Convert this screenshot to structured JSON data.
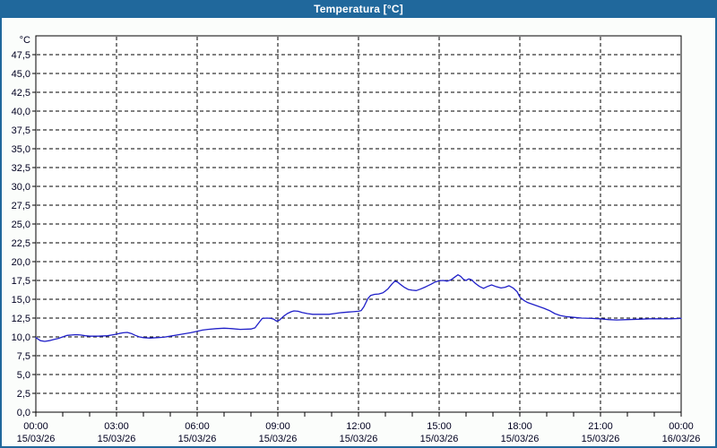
{
  "window": {
    "title": "Temperatura [°C]",
    "titlebar_color": "#20689c",
    "border_color": "#20689c",
    "background_color": "#fbfdfb"
  },
  "chart_data": {
    "type": "line",
    "title": "Temperatura [°C]",
    "ylabel": "°C",
    "ylim": [
      0,
      50
    ],
    "y_step": 2.5,
    "xlim_hours": [
      0,
      24
    ],
    "x_major_step_hours": 3,
    "x_minor_step_hours": 1,
    "grid": "dashed-black",
    "legend": "none",
    "plot_bg": "#ffffff",
    "line_color": "#2020c8",
    "axis_color": "#000000",
    "text_color": "#000020",
    "y_ticks": [
      "47,5",
      "45,0",
      "42,5",
      "40,0",
      "37,5",
      "35,0",
      "32,5",
      "30,0",
      "27,5",
      "25,0",
      "22,5",
      "20,0",
      "17,5",
      "15,0",
      "12,5",
      "10,0",
      "7,5",
      "5,0",
      "2,5",
      "0,0"
    ],
    "x_ticks": [
      {
        "hour": 0,
        "time": "00:00",
        "date": "15/03/26"
      },
      {
        "hour": 3,
        "time": "03:00",
        "date": "15/03/26"
      },
      {
        "hour": 6,
        "time": "06:00",
        "date": "15/03/26"
      },
      {
        "hour": 9,
        "time": "09:00",
        "date": "15/03/26"
      },
      {
        "hour": 12,
        "time": "12:00",
        "date": "15/03/26"
      },
      {
        "hour": 15,
        "time": "15:00",
        "date": "15/03/26"
      },
      {
        "hour": 18,
        "time": "18:00",
        "date": "15/03/26"
      },
      {
        "hour": 21,
        "time": "21:00",
        "date": "15/03/26"
      },
      {
        "hour": 24,
        "time": "00:00",
        "date": "16/03/26"
      }
    ],
    "series": [
      {
        "name": "Temperatura",
        "unit": "°C",
        "points": [
          [
            0.0,
            9.9
          ],
          [
            0.17,
            9.5
          ],
          [
            0.33,
            9.4
          ],
          [
            0.5,
            9.5
          ],
          [
            0.67,
            9.65
          ],
          [
            0.83,
            9.8
          ],
          [
            1.0,
            10.0
          ],
          [
            1.17,
            10.2
          ],
          [
            1.33,
            10.25
          ],
          [
            1.5,
            10.3
          ],
          [
            1.67,
            10.25
          ],
          [
            1.83,
            10.15
          ],
          [
            2.0,
            10.1
          ],
          [
            2.33,
            10.1
          ],
          [
            2.67,
            10.15
          ],
          [
            2.9,
            10.3
          ],
          [
            3.1,
            10.45
          ],
          [
            3.25,
            10.55
          ],
          [
            3.4,
            10.6
          ],
          [
            3.55,
            10.45
          ],
          [
            3.7,
            10.2
          ],
          [
            3.85,
            10.0
          ],
          [
            4.0,
            9.9
          ],
          [
            4.25,
            9.85
          ],
          [
            4.5,
            9.9
          ],
          [
            4.75,
            9.95
          ],
          [
            5.0,
            10.1
          ],
          [
            5.25,
            10.25
          ],
          [
            5.5,
            10.4
          ],
          [
            5.75,
            10.55
          ],
          [
            6.0,
            10.75
          ],
          [
            6.2,
            10.9
          ],
          [
            6.4,
            11.0
          ],
          [
            6.7,
            11.1
          ],
          [
            7.0,
            11.15
          ],
          [
            7.3,
            11.1
          ],
          [
            7.6,
            11.0
          ],
          [
            8.0,
            11.05
          ],
          [
            8.15,
            11.2
          ],
          [
            8.3,
            11.9
          ],
          [
            8.42,
            12.45
          ],
          [
            8.6,
            12.5
          ],
          [
            8.75,
            12.45
          ],
          [
            8.85,
            12.35
          ],
          [
            8.95,
            12.1
          ],
          [
            9.05,
            12.2
          ],
          [
            9.2,
            12.7
          ],
          [
            9.35,
            13.1
          ],
          [
            9.5,
            13.35
          ],
          [
            9.6,
            13.45
          ],
          [
            9.75,
            13.4
          ],
          [
            9.9,
            13.25
          ],
          [
            10.1,
            13.1
          ],
          [
            10.3,
            13.0
          ],
          [
            10.6,
            13.0
          ],
          [
            10.9,
            13.0
          ],
          [
            11.1,
            13.1
          ],
          [
            11.3,
            13.2
          ],
          [
            11.6,
            13.3
          ],
          [
            11.8,
            13.35
          ],
          [
            12.0,
            13.4
          ],
          [
            12.1,
            13.5
          ],
          [
            12.2,
            14.0
          ],
          [
            12.35,
            15.1
          ],
          [
            12.45,
            15.5
          ],
          [
            12.6,
            15.65
          ],
          [
            12.75,
            15.7
          ],
          [
            12.9,
            15.85
          ],
          [
            13.0,
            16.1
          ],
          [
            13.1,
            16.4
          ],
          [
            13.25,
            17.05
          ],
          [
            13.35,
            17.4
          ],
          [
            13.45,
            17.3
          ],
          [
            13.55,
            17.0
          ],
          [
            13.7,
            16.6
          ],
          [
            13.85,
            16.3
          ],
          [
            14.0,
            16.2
          ],
          [
            14.15,
            16.15
          ],
          [
            14.3,
            16.35
          ],
          [
            14.5,
            16.65
          ],
          [
            14.7,
            17.0
          ],
          [
            14.85,
            17.3
          ],
          [
            15.0,
            17.45
          ],
          [
            15.15,
            17.5
          ],
          [
            15.3,
            17.4
          ],
          [
            15.45,
            17.6
          ],
          [
            15.6,
            18.0
          ],
          [
            15.7,
            18.25
          ],
          [
            15.8,
            18.05
          ],
          [
            15.9,
            17.65
          ],
          [
            16.0,
            17.5
          ],
          [
            16.1,
            17.7
          ],
          [
            16.2,
            17.6
          ],
          [
            16.35,
            17.1
          ],
          [
            16.5,
            16.7
          ],
          [
            16.65,
            16.45
          ],
          [
            16.8,
            16.7
          ],
          [
            16.95,
            16.9
          ],
          [
            17.1,
            16.7
          ],
          [
            17.3,
            16.5
          ],
          [
            17.45,
            16.6
          ],
          [
            17.6,
            16.8
          ],
          [
            17.75,
            16.5
          ],
          [
            17.9,
            16.0
          ],
          [
            18.0,
            15.3
          ],
          [
            18.15,
            14.85
          ],
          [
            18.3,
            14.55
          ],
          [
            18.5,
            14.3
          ],
          [
            18.7,
            14.05
          ],
          [
            18.9,
            13.8
          ],
          [
            19.1,
            13.5
          ],
          [
            19.3,
            13.1
          ],
          [
            19.5,
            12.85
          ],
          [
            19.7,
            12.7
          ],
          [
            20.0,
            12.6
          ],
          [
            20.3,
            12.5
          ],
          [
            20.7,
            12.45
          ],
          [
            21.0,
            12.4
          ],
          [
            21.3,
            12.3
          ],
          [
            21.6,
            12.25
          ],
          [
            22.0,
            12.3
          ],
          [
            22.4,
            12.35
          ],
          [
            22.8,
            12.4
          ],
          [
            23.2,
            12.4
          ],
          [
            23.6,
            12.4
          ],
          [
            24.0,
            12.45
          ]
        ]
      }
    ]
  }
}
